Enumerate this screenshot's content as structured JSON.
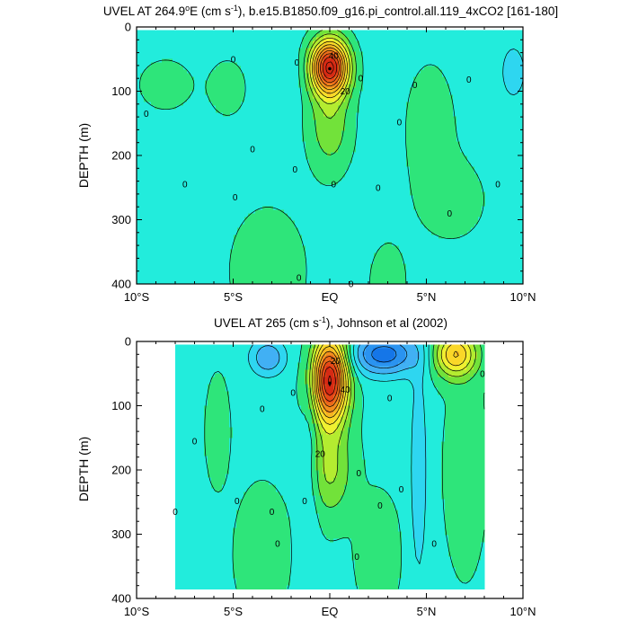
{
  "chart_data": [
    {
      "type": "contour",
      "title": "UVEL AT 264.9°E (cm s⁻¹), b.e15.B1850.f09_g16.pi_control.all.119_4xCO2 [161-180]",
      "title_parts": {
        "pre": "UVEL AT 264.9",
        "deg": "o",
        "mid": "E (cm s",
        "sup": "-1",
        "post": "), b.e15.B1850.f09_g16.pi_control.all.119_4xCO2 [161-180]"
      },
      "ylabel": "DEPTH (m)",
      "xlim": [
        -10,
        10
      ],
      "ylim": [
        0,
        400
      ],
      "y_reversed": true,
      "xticks": [
        {
          "value": -10,
          "label": "10°S"
        },
        {
          "value": -5,
          "label": "5°S"
        },
        {
          "value": 0,
          "label": "EQ"
        },
        {
          "value": 5,
          "label": "5°N"
        },
        {
          "value": 10,
          "label": "10°N"
        }
      ],
      "yticks": [
        {
          "value": 0,
          "label": "0"
        },
        {
          "value": 100,
          "label": "100"
        },
        {
          "value": 200,
          "label": "200"
        },
        {
          "value": 300,
          "label": "300"
        },
        {
          "value": 400,
          "label": "400"
        }
      ],
      "contour_interval": 5,
      "data_xrange": [
        -10,
        10
      ],
      "data_yrange": [
        5,
        400
      ],
      "core": {
        "x": 0,
        "depth": 65,
        "max_speed": 50
      },
      "contour_labels": [
        {
          "text": "40",
          "x": 0.2,
          "depth": 45
        },
        {
          "text": "20",
          "x": 0.8,
          "depth": 100
        },
        {
          "text": "0",
          "x": -5.0,
          "depth": 50
        },
        {
          "text": "0",
          "x": -9.5,
          "depth": 135
        },
        {
          "text": "0",
          "x": -4.9,
          "depth": 265
        },
        {
          "text": "0",
          "x": -7.5,
          "depth": 245
        },
        {
          "text": "0",
          "x": -4.0,
          "depth": 190
        },
        {
          "text": "0",
          "x": -1.8,
          "depth": 222
        },
        {
          "text": "0",
          "x": -1.7,
          "depth": 55
        },
        {
          "text": "0",
          "x": 1.6,
          "depth": 80
        },
        {
          "text": "0",
          "x": 3.6,
          "depth": 148
        },
        {
          "text": "0",
          "x": 1.1,
          "depth": 400
        },
        {
          "text": "0",
          "x": 2.5,
          "depth": 250
        },
        {
          "text": "0",
          "x": 4.4,
          "depth": 90
        },
        {
          "text": "0",
          "x": 7.2,
          "depth": 82
        },
        {
          "text": "0",
          "x": 8.7,
          "depth": 245
        },
        {
          "text": "0",
          "x": 6.2,
          "depth": 290
        },
        {
          "text": "0",
          "x": -1.6,
          "depth": 390
        },
        {
          "text": "0",
          "x": 0.2,
          "depth": 245
        }
      ]
    },
    {
      "type": "contour",
      "title": "UVEL AT 265 (cm s⁻¹), Johnson et al (2002)",
      "title_parts": {
        "pre": "UVEL AT 265 (cm s",
        "sup": "-1",
        "post": "), Johnson et al (2002)"
      },
      "ylabel": "DEPTH (m)",
      "xlim": [
        -10,
        10
      ],
      "ylim": [
        0,
        400
      ],
      "y_reversed": true,
      "xticks": [
        {
          "value": -10,
          "label": "10°S"
        },
        {
          "value": -5,
          "label": "5°S"
        },
        {
          "value": 0,
          "label": "EQ"
        },
        {
          "value": 5,
          "label": "5°N"
        },
        {
          "value": 10,
          "label": "10°N"
        }
      ],
      "yticks": [
        {
          "value": 0,
          "label": "0"
        },
        {
          "value": 100,
          "label": "100"
        },
        {
          "value": 200,
          "label": "200"
        },
        {
          "value": 300,
          "label": "300"
        },
        {
          "value": 400,
          "label": "400"
        }
      ],
      "contour_interval": 5,
      "data_xrange": [
        -8,
        8
      ],
      "data_yrange": [
        5,
        385
      ],
      "core": {
        "x": 0,
        "depth": 65,
        "max_speed": 45
      },
      "contour_labels": [
        {
          "text": "20",
          "x": 0.3,
          "depth": 30
        },
        {
          "text": "40",
          "x": 0.8,
          "depth": 75
        },
        {
          "text": "20",
          "x": -0.5,
          "depth": 175
        },
        {
          "text": "0",
          "x": -8.0,
          "depth": 265
        },
        {
          "text": "0",
          "x": -7.0,
          "depth": 155
        },
        {
          "text": "0",
          "x": -4.8,
          "depth": 248
        },
        {
          "text": "0",
          "x": -3.5,
          "depth": 105
        },
        {
          "text": "0",
          "x": -3.0,
          "depth": 265
        },
        {
          "text": "0",
          "x": -2.7,
          "depth": 315
        },
        {
          "text": "0",
          "x": -1.9,
          "depth": 80
        },
        {
          "text": "0",
          "x": -1.3,
          "depth": 248
        },
        {
          "text": "0",
          "x": 1.5,
          "depth": 205
        },
        {
          "text": "0",
          "x": 3.1,
          "depth": 88
        },
        {
          "text": "0",
          "x": 2.6,
          "depth": 255
        },
        {
          "text": "0",
          "x": 3.7,
          "depth": 230
        },
        {
          "text": "0",
          "x": 1.4,
          "depth": 335
        },
        {
          "text": "0",
          "x": 5.4,
          "depth": 315
        },
        {
          "text": "0",
          "x": 7.9,
          "depth": 50
        }
      ]
    }
  ]
}
